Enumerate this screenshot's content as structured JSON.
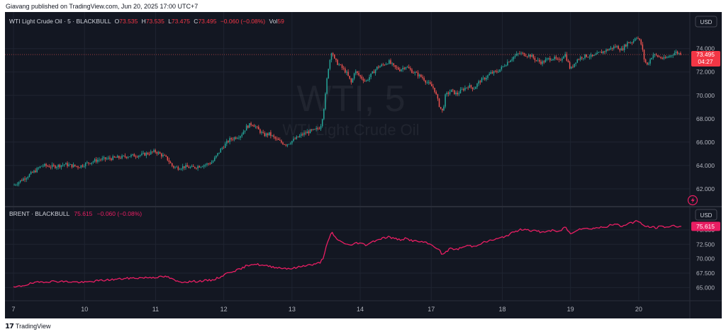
{
  "header": {
    "publish_line": "Giavang published on TradingView.com, Jun 20, 2025 17:00 UTC+7"
  },
  "footer": {
    "logo_mark": "17",
    "brand": "TradingView"
  },
  "colors": {
    "background": "#131722",
    "grid": "#1f2431",
    "up": "#26a69a",
    "down": "#ef5350",
    "brent_line": "#e91e63",
    "axis_text": "#b2b5be",
    "label_bg": "#f23645"
  },
  "chart_data": [
    {
      "type": "candlestick",
      "symbol_line": "WTI Light Crude Oil · 5 · BLACKBULL",
      "ohlc": {
        "o_label": "O",
        "o": "73.535",
        "h_label": "H",
        "h": "73.535",
        "l_label": "L",
        "l": "73.475",
        "c_label": "C",
        "c": "73.495",
        "change": "−0.060 (−0.08%)",
        "vol_label": "Vol",
        "vol": "59"
      },
      "watermark_big": "WTI, 5",
      "watermark_small": "WTI Light Crude Oil",
      "currency": "USD",
      "last_price": "73.495",
      "countdown": "04:27",
      "ylim": [
        60.9,
        75.8
      ],
      "yticks": [
        {
          "v": 62,
          "label": "62.000"
        },
        {
          "v": 64,
          "label": "64.000"
        },
        {
          "v": 66,
          "label": "66.000"
        },
        {
          "v": 68,
          "label": "68.000"
        },
        {
          "v": 70,
          "label": "70.000"
        },
        {
          "v": 72,
          "label": "72.000"
        },
        {
          "v": 74,
          "label": "74.000"
        }
      ],
      "price_path": [
        [
          0,
          62.3
        ],
        [
          0.25,
          62.7
        ],
        [
          0.5,
          63.1
        ],
        [
          0.8,
          63.6
        ],
        [
          1,
          64.0
        ],
        [
          1.4,
          63.9
        ],
        [
          1.8,
          64.1
        ],
        [
          2,
          64.0
        ],
        [
          2.3,
          63.9
        ],
        [
          2.6,
          64.2
        ],
        [
          3,
          64.5
        ],
        [
          3.4,
          64.6
        ],
        [
          3.8,
          64.7
        ],
        [
          4,
          64.8
        ],
        [
          4.5,
          64.9
        ],
        [
          5,
          65.2
        ],
        [
          5.4,
          64.6
        ],
        [
          5.6,
          63.9
        ],
        [
          5.8,
          63.8
        ],
        [
          6,
          63.9
        ],
        [
          6.3,
          63.8
        ],
        [
          6.6,
          64.0
        ],
        [
          6.8,
          64.1
        ],
        [
          7,
          64.3
        ],
        [
          7.3,
          65.4
        ],
        [
          7.6,
          66.2
        ],
        [
          8,
          66.6
        ],
        [
          8.2,
          67.3
        ],
        [
          8.4,
          67.6
        ],
        [
          8.6,
          67.1
        ],
        [
          8.8,
          66.6
        ],
        [
          9,
          66.7
        ],
        [
          9.2,
          66.3
        ],
        [
          9.4,
          66.0
        ],
        [
          9.6,
          65.8
        ],
        [
          9.8,
          66.1
        ],
        [
          10,
          66.4
        ],
        [
          10.2,
          66.7
        ],
        [
          10.4,
          66.9
        ],
        [
          10.6,
          67.0
        ],
        [
          10.8,
          67.3
        ],
        [
          10.9,
          68.5
        ],
        [
          11,
          70.5
        ],
        [
          11.05,
          72.0
        ],
        [
          11.1,
          72.6
        ],
        [
          11.2,
          73.9
        ],
        [
          11.3,
          73.0
        ],
        [
          11.5,
          72.5
        ],
        [
          11.7,
          72.0
        ],
        [
          11.9,
          71.0
        ],
        [
          12,
          72.1
        ],
        [
          12.2,
          71.6
        ],
        [
          12.4,
          71.2
        ],
        [
          12.6,
          71.8
        ],
        [
          12.8,
          72.4
        ],
        [
          13,
          72.6
        ],
        [
          13.2,
          72.9
        ],
        [
          13.4,
          72.4
        ],
        [
          13.6,
          72.2
        ],
        [
          13.8,
          72.5
        ],
        [
          14,
          72.1
        ],
        [
          14.2,
          71.8
        ],
        [
          14.4,
          71.5
        ],
        [
          14.6,
          71.0
        ],
        [
          14.8,
          70.6
        ],
        [
          15,
          69.0
        ],
        [
          15.1,
          68.6
        ],
        [
          15.2,
          70.0
        ],
        [
          15.4,
          70.4
        ],
        [
          15.6,
          70.1
        ],
        [
          15.8,
          70.5
        ],
        [
          16,
          70.8
        ],
        [
          16.2,
          70.6
        ],
        [
          16.4,
          71.2
        ],
        [
          16.6,
          71.5
        ],
        [
          16.8,
          71.9
        ],
        [
          17,
          72.0
        ],
        [
          17.2,
          72.4
        ],
        [
          17.4,
          72.9
        ],
        [
          17.6,
          73.3
        ],
        [
          17.8,
          73.6
        ],
        [
          18,
          73.5
        ],
        [
          18.2,
          73.4
        ],
        [
          18.4,
          73.0
        ],
        [
          18.6,
          72.8
        ],
        [
          18.8,
          73.1
        ],
        [
          19,
          73.2
        ],
        [
          19.2,
          72.9
        ],
        [
          19.4,
          73.6
        ],
        [
          19.6,
          72.2
        ],
        [
          19.8,
          73.0
        ],
        [
          20,
          73.3
        ],
        [
          20.2,
          73.4
        ],
        [
          20.4,
          73.3
        ],
        [
          20.6,
          73.6
        ],
        [
          20.8,
          73.8
        ],
        [
          21,
          74.0
        ],
        [
          21.2,
          74.2
        ],
        [
          21.4,
          73.9
        ],
        [
          21.6,
          74.5
        ],
        [
          21.8,
          74.6
        ],
        [
          21.9,
          75.1
        ],
        [
          22,
          74.8
        ],
        [
          22.1,
          74.3
        ],
        [
          22.2,
          73.0
        ],
        [
          22.3,
          72.6
        ],
        [
          22.5,
          73.5
        ],
        [
          22.7,
          73.3
        ],
        [
          22.9,
          73.1
        ],
        [
          23.1,
          73.4
        ],
        [
          23.3,
          73.7
        ],
        [
          23.5,
          73.5
        ]
      ]
    },
    {
      "type": "line",
      "symbol_line": "BRENT · BLACKBULL",
      "last_value": "75.615",
      "change": "−0.060 (−0.08%)",
      "currency": "USD",
      "ylim": [
        63.7,
        77.2
      ],
      "yticks": [
        {
          "v": 65,
          "label": "65.000"
        },
        {
          "v": 67.5,
          "label": "67.500"
        },
        {
          "v": 70,
          "label": "70.000"
        },
        {
          "v": 72.5,
          "label": "72.500"
        },
        {
          "v": 75,
          "label": "75.000"
        }
      ],
      "path": [
        [
          0,
          65.0
        ],
        [
          0.3,
          65.3
        ],
        [
          0.6,
          65.7
        ],
        [
          1,
          66.0
        ],
        [
          1.5,
          66.1
        ],
        [
          2,
          66.0
        ],
        [
          2.5,
          65.9
        ],
        [
          3,
          66.2
        ],
        [
          3.5,
          66.4
        ],
        [
          4,
          66.6
        ],
        [
          4.5,
          66.7
        ],
        [
          5,
          66.8
        ],
        [
          5.4,
          66.9
        ],
        [
          5.6,
          66.4
        ],
        [
          5.8,
          66.0
        ],
        [
          6,
          66.0
        ],
        [
          6.5,
          66.1
        ],
        [
          7,
          66.3
        ],
        [
          7.3,
          66.9
        ],
        [
          7.6,
          67.7
        ],
        [
          8,
          68.2
        ],
        [
          8.2,
          68.8
        ],
        [
          8.4,
          69.1
        ],
        [
          8.6,
          69.0
        ],
        [
          8.8,
          68.8
        ],
        [
          9,
          68.7
        ],
        [
          9.4,
          68.4
        ],
        [
          9.8,
          68.3
        ],
        [
          10,
          68.5
        ],
        [
          10.3,
          68.9
        ],
        [
          10.6,
          69.0
        ],
        [
          10.8,
          69.4
        ],
        [
          10.9,
          70.2
        ],
        [
          11,
          72.0
        ],
        [
          11.1,
          73.4
        ],
        [
          11.2,
          74.6
        ],
        [
          11.3,
          73.8
        ],
        [
          11.5,
          73.0
        ],
        [
          11.7,
          72.6
        ],
        [
          11.9,
          72.2
        ],
        [
          12,
          72.8
        ],
        [
          12.2,
          72.7
        ],
        [
          12.4,
          72.4
        ],
        [
          12.6,
          72.9
        ],
        [
          12.8,
          73.3
        ],
        [
          13,
          73.6
        ],
        [
          13.2,
          73.8
        ],
        [
          13.4,
          73.5
        ],
        [
          13.6,
          73.3
        ],
        [
          13.8,
          73.5
        ],
        [
          14,
          73.2
        ],
        [
          14.2,
          73.0
        ],
        [
          14.4,
          72.9
        ],
        [
          14.6,
          72.6
        ],
        [
          14.8,
          72.2
        ],
        [
          15,
          71.4
        ],
        [
          15.1,
          70.6
        ],
        [
          15.2,
          71.2
        ],
        [
          15.4,
          71.8
        ],
        [
          15.6,
          71.6
        ],
        [
          15.8,
          72.0
        ],
        [
          16,
          72.3
        ],
        [
          16.2,
          72.1
        ],
        [
          16.4,
          72.6
        ],
        [
          16.6,
          72.9
        ],
        [
          16.8,
          73.2
        ],
        [
          17,
          73.4
        ],
        [
          17.2,
          73.7
        ],
        [
          17.4,
          74.1
        ],
        [
          17.6,
          74.6
        ],
        [
          17.8,
          75.0
        ],
        [
          18,
          75.2
        ],
        [
          18.2,
          74.9
        ],
        [
          18.4,
          74.8
        ],
        [
          18.6,
          74.6
        ],
        [
          18.8,
          74.8
        ],
        [
          19,
          74.9
        ],
        [
          19.2,
          74.6
        ],
        [
          19.4,
          75.6
        ],
        [
          19.6,
          74.3
        ],
        [
          19.8,
          75.0
        ],
        [
          20,
          75.3
        ],
        [
          20.2,
          75.2
        ],
        [
          20.4,
          75.3
        ],
        [
          20.6,
          75.4
        ],
        [
          20.8,
          75.5
        ],
        [
          21,
          75.8
        ],
        [
          21.2,
          76.0
        ],
        [
          21.4,
          75.6
        ],
        [
          21.6,
          76.1
        ],
        [
          21.8,
          76.3
        ],
        [
          21.9,
          76.6
        ],
        [
          22,
          76.4
        ],
        [
          22.1,
          76.0
        ],
        [
          22.2,
          75.7
        ],
        [
          22.4,
          75.5
        ],
        [
          22.6,
          75.4
        ],
        [
          22.8,
          75.6
        ],
        [
          23,
          75.5
        ],
        [
          23.2,
          75.7
        ],
        [
          23.5,
          75.615
        ]
      ]
    }
  ],
  "x_axis": {
    "xlim": [
      -0.3,
      23.8
    ],
    "ticks": [
      {
        "v": 0,
        "label": "7"
      },
      {
        "v": 2.5,
        "label": "10"
      },
      {
        "v": 5,
        "label": "11"
      },
      {
        "v": 7.4,
        "label": "12"
      },
      {
        "v": 9.8,
        "label": "13"
      },
      {
        "v": 12.2,
        "label": "14"
      },
      {
        "v": 14.7,
        "label": "17"
      },
      {
        "v": 17.2,
        "label": "18"
      },
      {
        "v": 19.6,
        "label": "19"
      },
      {
        "v": 22,
        "label": "20"
      }
    ]
  }
}
